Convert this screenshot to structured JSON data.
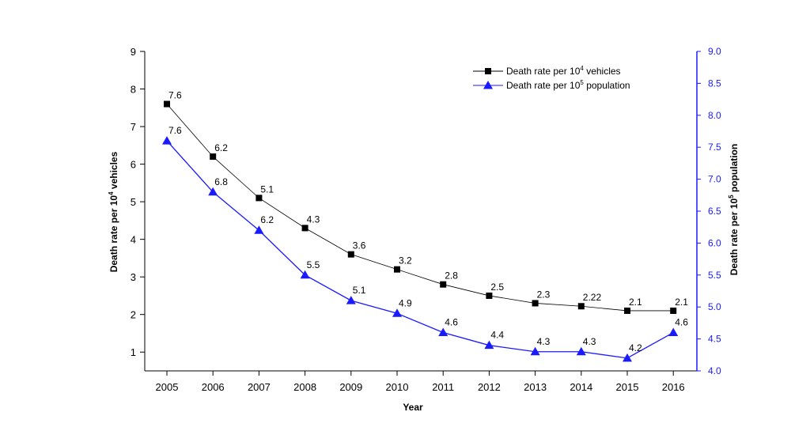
{
  "chart_data": {
    "type": "line",
    "title": "",
    "xlabel": "Year",
    "ylabel_left": {
      "base": "Death rate per 10",
      "exp": "4",
      "rest": " vehicles"
    },
    "ylabel_right": {
      "base": "Death rate per 10",
      "exp": "5",
      "rest": "  population"
    },
    "ylim_left": [
      0.5,
      9
    ],
    "ylim_right": [
      4.0,
      9.0
    ],
    "yticks_left": [
      "1",
      "2",
      "3",
      "4",
      "5",
      "6",
      "7",
      "8",
      "9"
    ],
    "yticks_right": [
      "4.0",
      "4.5",
      "5.0",
      "5.5",
      "6.0",
      "6.5",
      "7.0",
      "7.5",
      "8.0",
      "8.5",
      "9.0"
    ],
    "x": [
      "2005",
      "2006",
      "2007",
      "2008",
      "2009",
      "2010",
      "2011",
      "2012",
      "2013",
      "2014",
      "2015",
      "2016"
    ],
    "legend_position": "top-right",
    "grid": false,
    "series": [
      {
        "name": {
          "base": "Death rate per 10",
          "exp": "4",
          "rest": " vehicles"
        },
        "axis": "left",
        "marker": "square",
        "color": "#000000",
        "values": [
          7.6,
          6.2,
          5.1,
          4.3,
          3.6,
          3.2,
          2.8,
          2.5,
          2.3,
          2.22,
          2.1,
          2.1
        ],
        "labels": [
          "7.6",
          "6.2",
          "5.1",
          "4.3",
          "3.6",
          "3.2",
          "2.8",
          "2.5",
          "2.3",
          "2.22",
          "2.1",
          "2.1"
        ]
      },
      {
        "name": {
          "base": "Death rate per 10",
          "exp": "5",
          "rest": "  population"
        },
        "axis": "right",
        "marker": "triangle",
        "color": "#1a1aff",
        "values": [
          7.6,
          6.8,
          6.2,
          5.5,
          5.1,
          4.9,
          4.6,
          4.4,
          4.3,
          4.3,
          4.2,
          4.6
        ],
        "labels": [
          "7.6",
          "6.8",
          "6.2",
          "5.5",
          "5.1",
          "4.9",
          "4.6",
          "4.4",
          "4.3",
          "4.3",
          "4.2",
          "4.6"
        ]
      }
    ]
  }
}
